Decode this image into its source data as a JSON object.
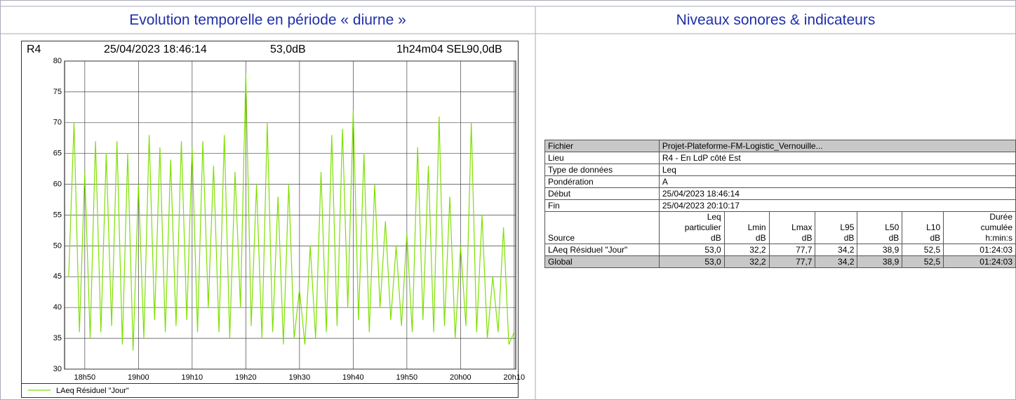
{
  "header": {
    "left_title": "Evolution temporelle en période « diurne »",
    "right_title": "Niveaux sonores & indicateurs"
  },
  "chart_data": {
    "type": "line",
    "info": [
      "R4",
      "25/04/2023 18:46:14",
      "53,0dB",
      "1h24m04 SEL",
      "90,0dB"
    ],
    "xlim": [
      1126.23,
      1210.28
    ],
    "xticks": [
      {
        "value": 1130,
        "label": "18h50"
      },
      {
        "value": 1140,
        "label": "19h00"
      },
      {
        "value": 1150,
        "label": "19h10"
      },
      {
        "value": 1160,
        "label": "19h20"
      },
      {
        "value": 1170,
        "label": "19h30"
      },
      {
        "value": 1180,
        "label": "19h40"
      },
      {
        "value": 1190,
        "label": "19h50"
      },
      {
        "value": 1200,
        "label": "20h00"
      },
      {
        "value": 1210,
        "label": "20h10"
      }
    ],
    "ylim": [
      30,
      80
    ],
    "yticks": [
      30,
      35,
      40,
      45,
      50,
      55,
      60,
      65,
      70,
      75,
      80
    ],
    "grid": true,
    "x": [
      1127,
      1128,
      1129,
      1130,
      1131,
      1132,
      1133,
      1134,
      1135,
      1136,
      1137,
      1138,
      1139,
      1140,
      1141,
      1142,
      1143,
      1144,
      1145,
      1146,
      1147,
      1148,
      1149,
      1150,
      1151,
      1152,
      1153,
      1154,
      1155,
      1156,
      1157,
      1158,
      1159,
      1160,
      1161,
      1162,
      1163,
      1164,
      1165,
      1166,
      1167,
      1168,
      1169,
      1170,
      1171,
      1172,
      1173,
      1174,
      1175,
      1176,
      1177,
      1178,
      1179,
      1180,
      1181,
      1182,
      1183,
      1184,
      1185,
      1186,
      1187,
      1188,
      1189,
      1190,
      1191,
      1192,
      1193,
      1194,
      1195,
      1196,
      1197,
      1198,
      1199,
      1200,
      1201,
      1202,
      1203,
      1204,
      1205,
      1206,
      1207,
      1208,
      1209,
      1210
    ],
    "series": [
      {
        "name": "LAeq Résiduel \"Jour\"",
        "color": "#7ee000",
        "values": [
          45,
          70,
          36,
          62,
          35,
          67,
          36,
          65,
          37,
          67,
          34,
          65,
          33,
          60,
          35,
          68,
          38,
          66,
          36,
          64,
          37,
          67,
          38,
          66,
          36,
          67,
          40,
          63,
          36,
          68,
          35,
          62,
          40,
          78,
          37,
          60,
          35,
          70,
          36,
          58,
          34,
          60,
          35,
          43,
          34,
          50,
          35,
          62,
          36,
          68,
          37,
          69,
          40,
          72,
          38,
          65,
          36,
          60,
          40,
          54,
          38,
          50,
          37,
          52,
          36,
          66,
          38,
          63,
          36,
          71,
          37,
          58,
          35,
          50,
          37,
          70,
          36,
          55,
          35,
          45,
          36,
          53,
          34,
          36
        ]
      }
    ]
  },
  "table": {
    "info_rows": [
      [
        "Fichier",
        "Projet-Plateforme-FM-Logistic_Vernouille..."
      ],
      [
        "Lieu",
        "R4 - En LdP côté Est"
      ],
      [
        "Type de données",
        "Leq"
      ],
      [
        "Pondération",
        "A"
      ],
      [
        "Début",
        "25/04/2023 18:46:14"
      ],
      [
        "Fin",
        "25/04/2023 20:10:17"
      ]
    ],
    "columns": [
      [
        "Source"
      ],
      [
        "Leq",
        "particulier",
        "dB"
      ],
      [
        "Lmin",
        "dB"
      ],
      [
        "Lmax",
        "dB"
      ],
      [
        "L95",
        "dB"
      ],
      [
        "L50",
        "dB"
      ],
      [
        "L10",
        "dB"
      ],
      [
        "Durée",
        "cumulée",
        "h:min:s"
      ]
    ],
    "rows": [
      [
        "LAeq Résiduel \"Jour\"",
        "53,0",
        "32,2",
        "77,7",
        "34,2",
        "38,9",
        "52,5",
        "01:24:03"
      ],
      [
        "Global",
        "53,0",
        "32,2",
        "77,7",
        "34,2",
        "38,9",
        "52,5",
        "01:24:03"
      ]
    ]
  }
}
